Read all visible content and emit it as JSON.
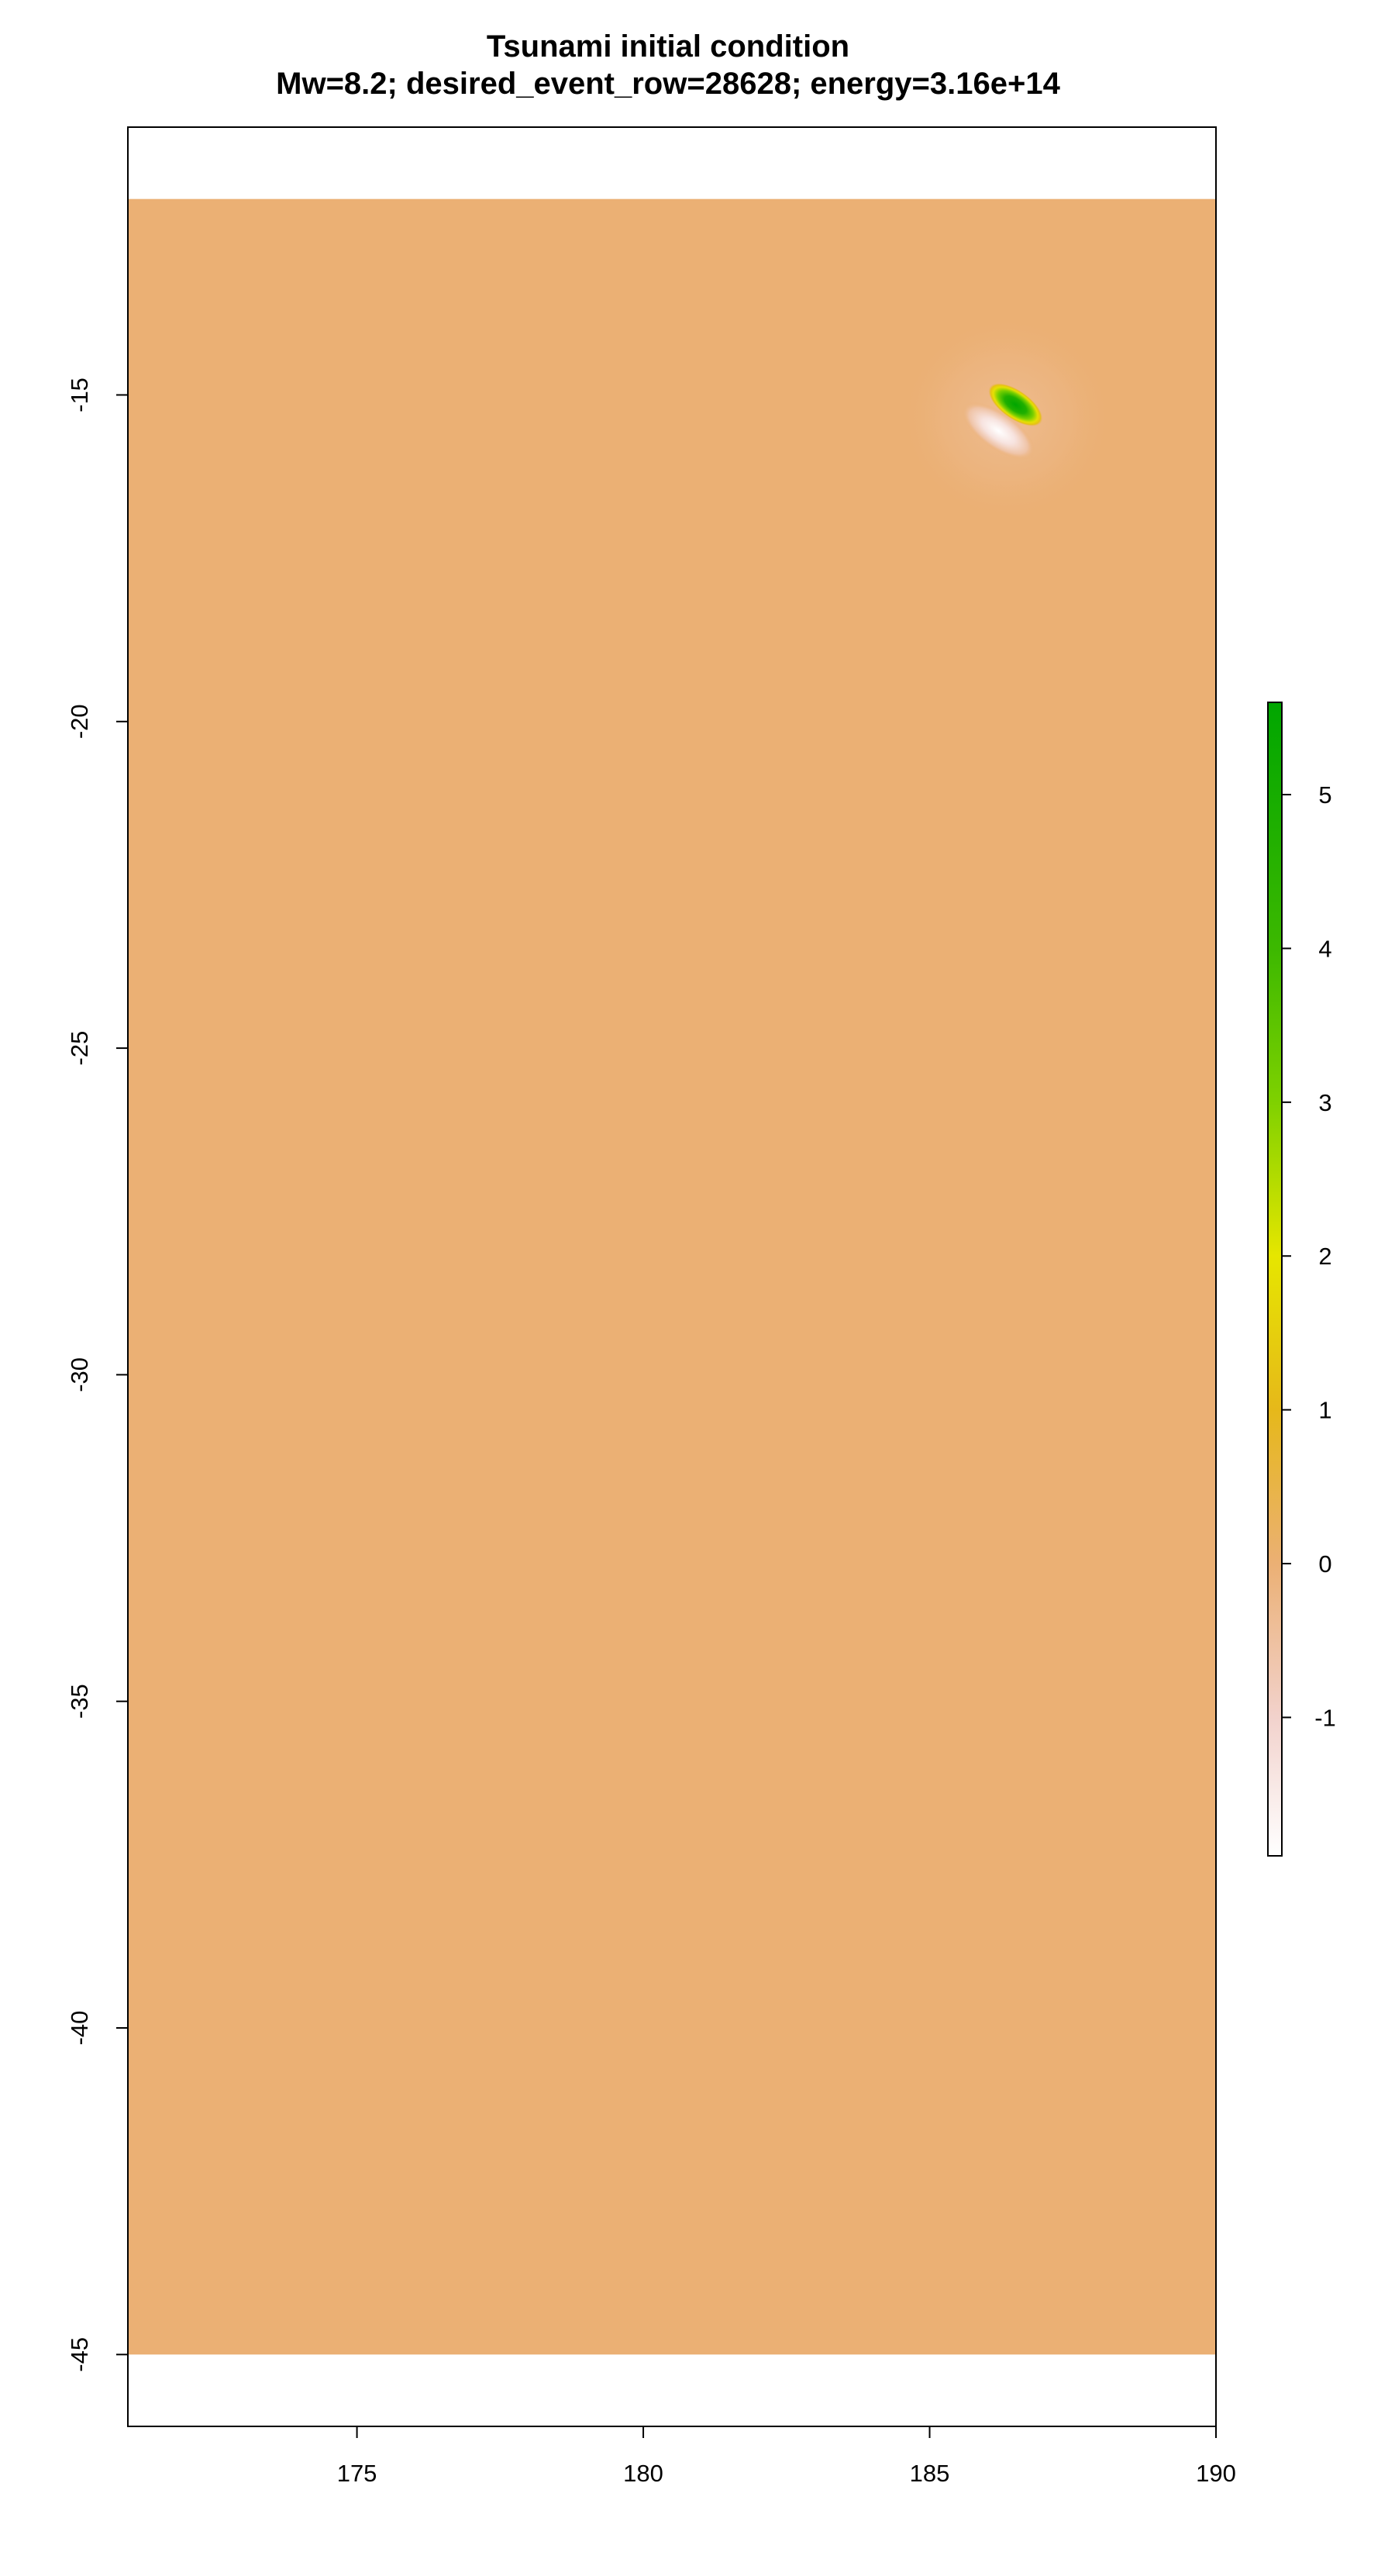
{
  "chart_data": {
    "type": "heatmap",
    "title": "Tsunami initial condition",
    "subtitle": "Mw=8.2; desired_event_row=28628; energy=3.16e+14",
    "xlabel": "",
    "ylabel": "",
    "xlim": [
      171,
      190
    ],
    "ylim": [
      -46.1,
      -10.9
    ],
    "x_ticks": [
      175,
      180,
      185,
      190
    ],
    "x_tick_labels": [
      "175",
      "180",
      "185",
      "190"
    ],
    "y_ticks": [
      -15,
      -20,
      -25,
      -30,
      -35,
      -40,
      -45
    ],
    "y_tick_labels": [
      "-15",
      "-20",
      "-25",
      "-30",
      "-35",
      "-40",
      "-45"
    ],
    "raster_extent": {
      "x": [
        171,
        190
      ],
      "y": [
        -45,
        -12
      ]
    },
    "background_value": 0,
    "features": [
      {
        "name": "uplift",
        "x": 186.5,
        "y": -15.15,
        "peak": 5.6
      },
      {
        "name": "subsidence",
        "x": 186.2,
        "y": -15.55,
        "peak": -1.9
      }
    ],
    "colorbar": {
      "range": [
        -1.9,
        5.6
      ],
      "ticks": [
        -1,
        0,
        1,
        2,
        3,
        4,
        5
      ],
      "tick_labels": [
        "-1",
        "0",
        "1",
        "2",
        "3",
        "4",
        "5"
      ],
      "color_stops": [
        {
          "value": -1.9,
          "color": "#ffffff"
        },
        {
          "value": -1.0,
          "color": "#f2d2cc"
        },
        {
          "value": 0.0,
          "color": "#ebb074"
        },
        {
          "value": 1.0,
          "color": "#e6b81a"
        },
        {
          "value": 2.0,
          "color": "#e6e600"
        },
        {
          "value": 3.0,
          "color": "#7fd100"
        },
        {
          "value": 4.0,
          "color": "#3cb800"
        },
        {
          "value": 5.6,
          "color": "#00a600"
        }
      ]
    },
    "grid": false,
    "legend": "right"
  }
}
